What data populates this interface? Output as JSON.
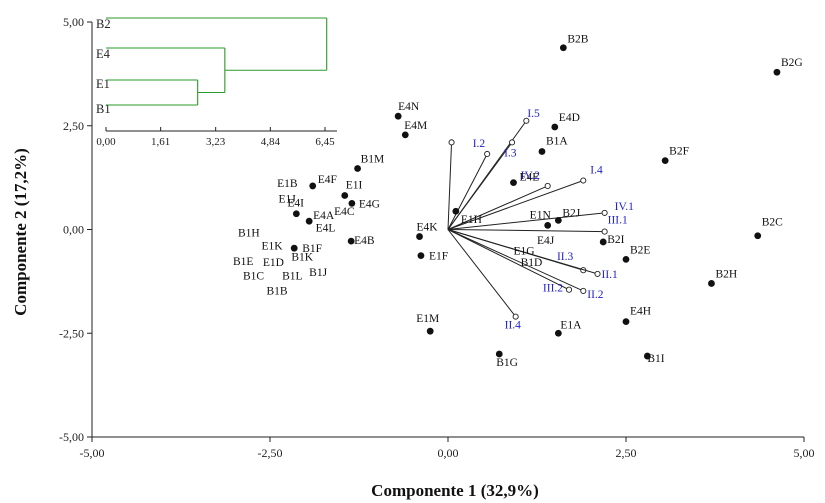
{
  "chart_data": {
    "type": "scatter",
    "subtype": "biplot",
    "xlabel": "Componente 1 (32,9%)",
    "ylabel": "Componente 2 (17,2%)",
    "xlim": [
      -5,
      5
    ],
    "ylim": [
      -5,
      5
    ],
    "xticks": [
      "-5,00",
      "-2,50",
      "0,00",
      "2,50",
      "5,00"
    ],
    "yticks": [
      "-5,00",
      "-2,50",
      "0,00",
      "2,50",
      "5,00"
    ],
    "grid": false,
    "vector_color": "#2222cc",
    "point_color": "#111111",
    "points": [
      {
        "label": "B2B",
        "x": 1.62,
        "y": 4.38
      },
      {
        "label": "B2G",
        "x": 4.62,
        "y": 3.79
      },
      {
        "label": "E4N",
        "x": -0.7,
        "y": 2.73
      },
      {
        "label": "E4M",
        "x": -0.6,
        "y": 2.28
      },
      {
        "label": "E4D",
        "x": 1.5,
        "y": 2.47
      },
      {
        "label": "B1A",
        "x": 1.32,
        "y": 1.88
      },
      {
        "label": "B1M",
        "x": -1.27,
        "y": 1.47
      },
      {
        "label": "B2F",
        "x": 3.05,
        "y": 1.66
      },
      {
        "label": "E4F",
        "x": -1.9,
        "y": 1.05
      },
      {
        "label": "E1I",
        "x": -1.45,
        "y": 0.82
      },
      {
        "label": "E4G",
        "x": -1.35,
        "y": 0.63
      },
      {
        "label": "E4I",
        "x": -2.13,
        "y": 0.38
      },
      {
        "label": "E4A",
        "x": -1.95,
        "y": 0.2
      },
      {
        "label": "E4E",
        "x": 0.92,
        "y": 1.13
      },
      {
        "label": "E1H",
        "x": 0.11,
        "y": 0.44
      },
      {
        "label": "E4K",
        "x": -0.4,
        "y": -0.17
      },
      {
        "label": "E4B",
        "x": -1.36,
        "y": -0.28
      },
      {
        "label": "B1F",
        "x": -2.16,
        "y": -0.45
      },
      {
        "label": "E1F",
        "x": -0.38,
        "y": -0.63
      },
      {
        "label": "E1N",
        "x": 1.4,
        "y": 0.1
      },
      {
        "label": "B2J",
        "x": 1.55,
        "y": 0.22
      },
      {
        "label": "B2I",
        "x": 2.18,
        "y": -0.3
      },
      {
        "label": "B2E",
        "x": 2.5,
        "y": -0.72
      },
      {
        "label": "B2C",
        "x": 4.35,
        "y": -0.15
      },
      {
        "label": "B2H",
        "x": 3.7,
        "y": -1.3
      },
      {
        "label": "E4H",
        "x": 2.5,
        "y": -2.22
      },
      {
        "label": "B1I",
        "x": 2.8,
        "y": -3.05
      },
      {
        "label": "E1A",
        "x": 1.55,
        "y": -2.5
      },
      {
        "label": "E1M",
        "x": -0.25,
        "y": -2.45
      },
      {
        "label": "B1G",
        "x": 0.72,
        "y": -3.0
      }
    ],
    "free_labels": [
      {
        "label": "E1B",
        "x": -2.4,
        "y": 1.02
      },
      {
        "label": "E1J",
        "x": -2.38,
        "y": 0.65
      },
      {
        "label": "E4C",
        "x": -1.6,
        "y": 0.35
      },
      {
        "label": "E4L",
        "x": -1.86,
        "y": -0.05
      },
      {
        "label": "B1H",
        "x": -2.95,
        "y": -0.17
      },
      {
        "label": "E1K",
        "x": -2.62,
        "y": -0.48
      },
      {
        "label": "B1K",
        "x": -2.2,
        "y": -0.75
      },
      {
        "label": "B1E",
        "x": -3.02,
        "y": -0.85
      },
      {
        "label": "E1D",
        "x": -2.6,
        "y": -0.88
      },
      {
        "label": "B1J",
        "x": -1.95,
        "y": -1.12
      },
      {
        "label": "B1C",
        "x": -2.88,
        "y": -1.2
      },
      {
        "label": "B1L",
        "x": -2.33,
        "y": -1.2
      },
      {
        "label": "B1B",
        "x": -2.55,
        "y": -1.57
      },
      {
        "label": "E4J",
        "x": 1.25,
        "y": -0.35
      },
      {
        "label": "E1G",
        "x": 0.92,
        "y": -0.6
      },
      {
        "label": "B1D",
        "x": 1.02,
        "y": -0.88
      }
    ],
    "vectors": [
      {
        "label": "I.5",
        "x": 1.1,
        "y": 2.62
      },
      {
        "label": "I.2",
        "x": 0.55,
        "y": 1.82
      },
      {
        "label": "I.3",
        "x": 0.9,
        "y": 2.1
      },
      {
        "label": "IV.2",
        "x": 1.4,
        "y": 1.05
      },
      {
        "label": "I.4",
        "x": 1.9,
        "y": 1.18
      },
      {
        "label": "IV.1",
        "x": 2.2,
        "y": 0.4
      },
      {
        "label": "III.1",
        "x": 2.2,
        "y": -0.05
      },
      {
        "label": "II.3",
        "x": 1.9,
        "y": -0.98
      },
      {
        "label": "II.1",
        "x": 2.1,
        "y": -1.07
      },
      {
        "label": "III.2",
        "x": 1.7,
        "y": -1.45
      },
      {
        "label": "II.2",
        "x": 1.9,
        "y": -1.48
      },
      {
        "label": "II.4",
        "x": 0.95,
        "y": -2.1
      }
    ],
    "unlabeled_vector_tip": {
      "x": 0.05,
      "y": 2.1
    },
    "dendrogram": {
      "labels": [
        "B2",
        "E4",
        "E1",
        "B1"
      ],
      "ticks": [
        "0,00",
        "1,61",
        "3,23",
        "4,84",
        "6,45"
      ],
      "color": "#2a9a2a",
      "merges": [
        {
          "a": "E1",
          "b": "B1",
          "height": 2.7
        },
        {
          "a": "E4",
          "b": "E1+B1",
          "height": 3.5
        },
        {
          "a": "B2",
          "b": "E4+E1+B1",
          "height": 6.5
        }
      ]
    }
  }
}
